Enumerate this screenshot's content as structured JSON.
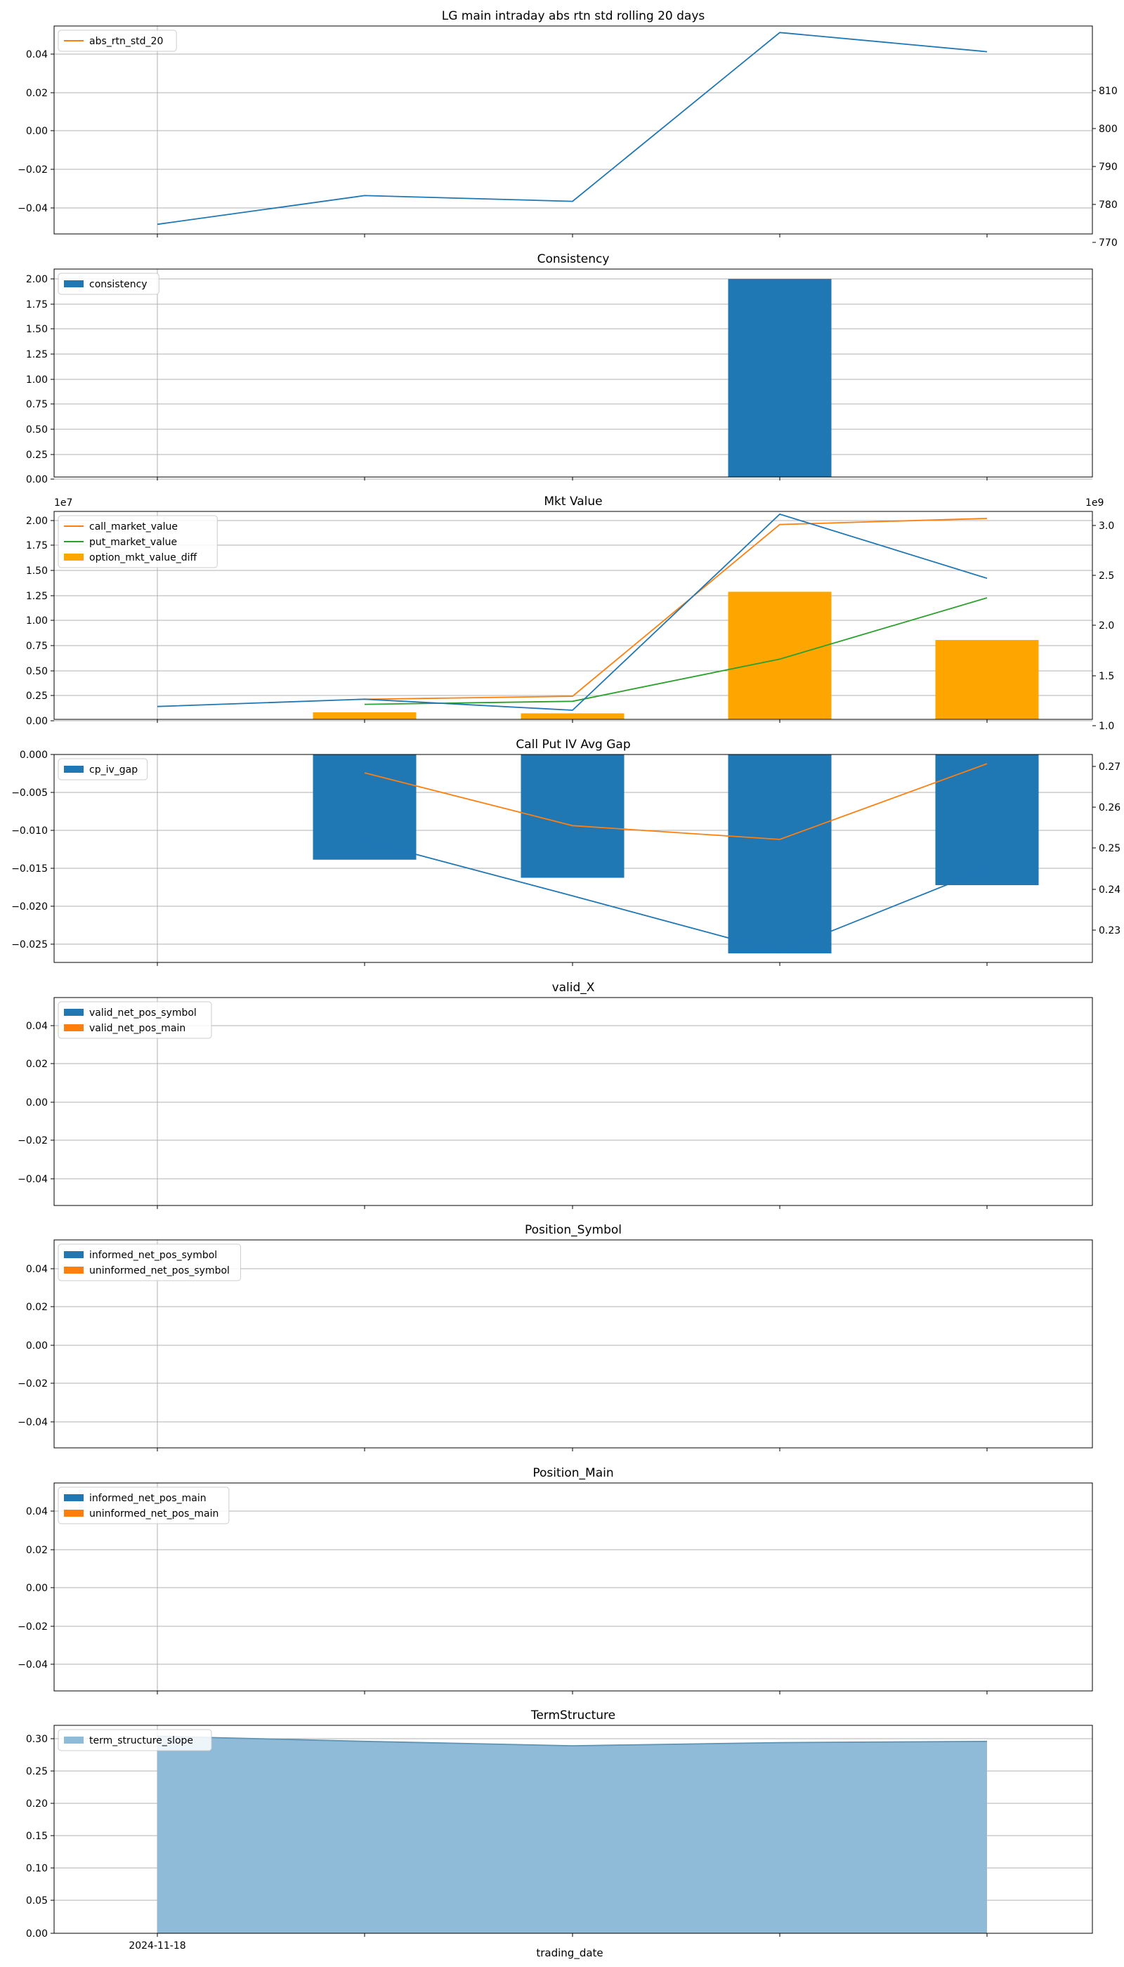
{
  "figure": {
    "xlabel": "trading_date",
    "x_categories": [
      "2024-11-18",
      "",
      "",
      "",
      ""
    ],
    "colors": {
      "blue": "#1f77b4",
      "orange": "#ff7f0e",
      "green": "#2ca02c",
      "gold": "#ffa500",
      "area": "#8fbad8",
      "grid": "#b0b0b0"
    }
  },
  "chart_data": [
    {
      "type": "line",
      "title": "LG main intraday abs rtn std rolling 20 days",
      "ylim_left": [
        -0.055,
        0.055
      ],
      "yticks_left": [
        "0.04",
        "0.02",
        "0.00",
        "−0.02",
        "−0.04"
      ],
      "ylim_right": [
        762.5,
        816.7
      ],
      "yticks_right": [
        "810",
        "800",
        "790",
        "780",
        "770"
      ],
      "legend": [
        "abs_rtn_std_20"
      ],
      "series": [
        {
          "name": "",
          "axis": "right",
          "values": [
            765.0,
            772.5,
            771.0,
            815.0,
            810.0
          ]
        },
        {
          "name": "abs_rtn_std_20",
          "axis": "left",
          "values": [
            null,
            null,
            null,
            null,
            null
          ]
        }
      ]
    },
    {
      "type": "bar",
      "title": "Consistency",
      "ylim_left": [
        0,
        2.1
      ],
      "yticks_left": [
        "2.00",
        "1.75",
        "1.50",
        "1.25",
        "1.00",
        "0.75",
        "0.50",
        "0.25",
        "0.00"
      ],
      "legend": [
        "consistency"
      ],
      "series": [
        {
          "name": "consistency",
          "values": [
            0,
            0,
            0,
            2.0,
            0
          ]
        }
      ]
    },
    {
      "type": "bar+line",
      "title": "Mkt Value",
      "offset_left": "1e7",
      "offset_right": "1e9",
      "ylim_left": [
        0,
        2.07
      ],
      "yticks_left": [
        "2.00",
        "1.75",
        "1.50",
        "1.25",
        "1.00",
        "0.75",
        "0.50",
        "0.25",
        "0.00"
      ],
      "ylim_right": [
        0.78,
        3.05
      ],
      "yticks_right": [
        "3.0",
        "2.5",
        "2.0",
        "1.5",
        "1.0"
      ],
      "legend": [
        "call_market_value",
        "put_market_value",
        "option_mkt_value_diff"
      ],
      "series": [
        {
          "name": "",
          "axis": "right",
          "values": [
            0.92,
            1.0,
            0.88,
            3.02,
            2.32
          ]
        },
        {
          "name": "call_market_value",
          "axis": "left",
          "values": [
            null,
            0.2,
            0.23,
            1.94,
            2.0
          ]
        },
        {
          "name": "put_market_value",
          "axis": "left",
          "values": [
            null,
            0.15,
            0.18,
            0.6,
            1.21
          ]
        },
        {
          "name": "option_mkt_value_diff",
          "axis": "left",
          "bar": true,
          "values": [
            0,
            0.07,
            0.06,
            1.27,
            0.79
          ]
        }
      ]
    },
    {
      "type": "bar+line",
      "title": "Call Put IV Avg Gap",
      "ylim_left": [
        -0.0253,
        0
      ],
      "yticks_left": [
        "0.000",
        "−0.005",
        "−0.010",
        "−0.015",
        "−0.020",
        "−0.025"
      ],
      "ylim_right": [
        0.2275,
        0.2728
      ],
      "yticks_right": [
        "0.27",
        "0.26",
        "0.25",
        "0.24",
        "0.23"
      ],
      "legend": [
        "cp_iv_gap"
      ],
      "series": [
        {
          "name": "cp_iv_gap",
          "axis": "left",
          "bar": true,
          "values": [
            null,
            -0.0128,
            -0.015,
            -0.0242,
            -0.0159
          ]
        },
        {
          "name": "",
          "axis": "left",
          "values": [
            null,
            -0.0105,
            -0.0172,
            -0.024,
            -0.0139
          ]
        },
        {
          "name": "",
          "axis": "right",
          "values": [
            null,
            0.2688,
            0.2573,
            0.2543,
            0.2708
          ]
        }
      ]
    },
    {
      "type": "bar",
      "title": "valid_X",
      "ylim_left": [
        -0.055,
        0.055
      ],
      "yticks_left": [
        "0.04",
        "0.02",
        "0.00",
        "−0.02",
        "−0.04"
      ],
      "legend": [
        "valid_net_pos_symbol",
        "valid_net_pos_main"
      ],
      "series": [
        {
          "name": "valid_net_pos_symbol",
          "values": [
            0,
            0,
            0,
            0,
            0
          ]
        },
        {
          "name": "valid_net_pos_main",
          "values": [
            0,
            0,
            0,
            0,
            0
          ]
        }
      ]
    },
    {
      "type": "bar",
      "title": "Position_Symbol",
      "ylim_left": [
        -0.055,
        0.055
      ],
      "yticks_left": [
        "0.04",
        "0.02",
        "0.00",
        "−0.02",
        "−0.04"
      ],
      "legend": [
        "informed_net_pos_symbol",
        "uninformed_net_pos_symbol"
      ],
      "series": [
        {
          "name": "informed_net_pos_symbol",
          "values": [
            0,
            0,
            0,
            0,
            0
          ]
        },
        {
          "name": "uninformed_net_pos_symbol",
          "values": [
            0,
            0,
            0,
            0,
            0
          ]
        }
      ]
    },
    {
      "type": "bar",
      "title": "Position_Main",
      "ylim_left": [
        -0.055,
        0.055
      ],
      "yticks_left": [
        "0.04",
        "0.02",
        "0.00",
        "−0.02",
        "−0.04"
      ],
      "legend": [
        "informed_net_pos_main",
        "uninformed_net_pos_main"
      ],
      "series": [
        {
          "name": "informed_net_pos_main",
          "values": [
            0,
            0,
            0,
            0,
            0
          ]
        },
        {
          "name": "uninformed_net_pos_main",
          "values": [
            0,
            0,
            0,
            0,
            0
          ]
        }
      ]
    },
    {
      "type": "area",
      "title": "TermStructure",
      "ylim_left": [
        0,
        0.325
      ],
      "yticks_left": [
        "0.30",
        "0.25",
        "0.20",
        "0.15",
        "0.10",
        "0.05",
        "0.00"
      ],
      "legend": [
        "term_structure_slope"
      ],
      "series": [
        {
          "name": "term_structure_slope",
          "values": [
            0.308,
            0.3,
            0.293,
            0.298,
            0.3
          ]
        }
      ]
    }
  ]
}
